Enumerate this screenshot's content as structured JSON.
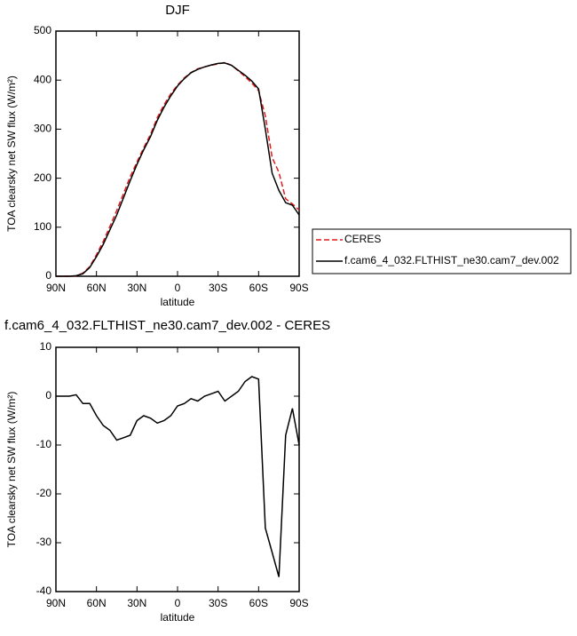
{
  "chart_data": [
    {
      "type": "line",
      "title": "DJF",
      "xlabel": "latitude",
      "ylabel": "TOA clearsky net SW flux (W/m²)",
      "x": [
        90,
        85,
        80,
        75,
        70,
        65,
        60,
        55,
        50,
        45,
        40,
        35,
        30,
        25,
        20,
        15,
        10,
        5,
        0,
        -5,
        -10,
        -15,
        -20,
        -25,
        -30,
        -35,
        -40,
        -45,
        -50,
        -55,
        -60,
        -65,
        -70,
        -75,
        -80,
        -85,
        -90
      ],
      "xlim": [
        90,
        -90
      ],
      "xticks": [
        {
          "value": 90,
          "label": "90N"
        },
        {
          "value": 60,
          "label": "60N"
        },
        {
          "value": 30,
          "label": "30N"
        },
        0,
        {
          "value": -30,
          "label": "30S"
        },
        {
          "value": -60,
          "label": "60S"
        },
        {
          "value": -90,
          "label": "90S"
        }
      ],
      "ylim": [
        0,
        500
      ],
      "yticks": [
        0,
        100,
        200,
        300,
        400,
        500
      ],
      "series": [
        {
          "name": "CERES",
          "color": "#e41a1c",
          "dash": true,
          "values": [
            0,
            0,
            0,
            0.7,
            6.5,
            19.5,
            44,
            71,
            102,
            134,
            168.5,
            203,
            233,
            262,
            289.5,
            323.5,
            350,
            372,
            390,
            404.5,
            415.5,
            423,
            427,
            430.5,
            433,
            436,
            430,
            419,
            407,
            394,
            378.5,
            327,
            242,
            212,
            158,
            147.5,
            135
          ]
        },
        {
          "name": "f.cam6_4_032.FLTHIST_ne30.cam7_dev.002",
          "color": "#000000",
          "dash": false,
          "values": [
            0,
            0,
            0,
            1,
            5,
            18,
            40,
            65,
            95,
            125,
            160,
            195,
            228,
            258,
            285,
            318,
            345,
            368,
            388,
            403,
            415,
            422,
            427,
            431,
            434,
            435,
            430,
            420,
            410,
            398,
            382,
            300,
            210,
            175,
            150,
            145,
            125
          ]
        }
      ]
    },
    {
      "type": "line",
      "title": "f.cam6_4_032.FLTHIST_ne30.cam7_dev.002 - CERES",
      "xlabel": "latitude",
      "ylabel": "TOA clearsky net SW flux (W/m²)",
      "x": [
        90,
        85,
        80,
        75,
        70,
        65,
        60,
        55,
        50,
        45,
        40,
        35,
        30,
        25,
        20,
        15,
        10,
        5,
        0,
        -5,
        -10,
        -15,
        -20,
        -25,
        -30,
        -35,
        -40,
        -45,
        -50,
        -55,
        -60,
        -65,
        -70,
        -75,
        -80,
        -85,
        -90
      ],
      "xlim": [
        90,
        -90
      ],
      "xticks": [
        {
          "value": 90,
          "label": "90N"
        },
        {
          "value": 60,
          "label": "60N"
        },
        {
          "value": 30,
          "label": "30N"
        },
        0,
        {
          "value": -30,
          "label": "30S"
        },
        {
          "value": -60,
          "label": "60S"
        },
        {
          "value": -90,
          "label": "90S"
        }
      ],
      "ylim": [
        -40,
        10
      ],
      "yticks": [
        -40,
        -30,
        -20,
        -10,
        0,
        10
      ],
      "series": [
        {
          "color": "#000000",
          "dash": false,
          "values": [
            0,
            0,
            0,
            0.3,
            -1.5,
            -1.5,
            -4,
            -6,
            -7,
            -9,
            -8.5,
            -8,
            -5,
            -4,
            -4.5,
            -5.5,
            -5,
            -4,
            -2,
            -1.5,
            -0.5,
            -1,
            0,
            0.5,
            1,
            -1,
            0,
            1,
            3,
            4,
            3.5,
            -27,
            -32,
            -37,
            -8,
            -2.5,
            -10
          ]
        }
      ]
    }
  ]
}
